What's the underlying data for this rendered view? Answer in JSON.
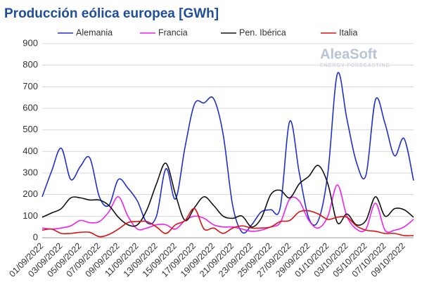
{
  "chart_data": {
    "type": "line",
    "title": "Producción eólica europea [GWh]",
    "watermark": [
      "AleaSoft",
      "ENERGY FORECASTING"
    ],
    "categories": [
      "01/09/2022",
      null,
      "03/09/2022",
      null,
      "05/09/2022",
      null,
      "07/09/2022",
      null,
      "09/09/2022",
      null,
      "11/09/2022",
      null,
      "13/09/2022",
      null,
      "15/09/2022",
      null,
      "17/09/2022",
      null,
      "19/09/2022",
      null,
      "21/09/2022",
      null,
      "23/09/2022",
      null,
      "25/09/2022",
      null,
      "27/09/2022",
      null,
      "29/09/2022",
      null,
      "01/10/2022",
      null,
      "03/10/2022",
      null,
      "05/10/2022",
      null,
      "07/10/2022",
      null,
      "09/10/2022",
      null
    ],
    "series": [
      {
        "name": "Alemania",
        "color": "#1f2fd0",
        "values": [
          190,
          310,
          415,
          270,
          330,
          370,
          190,
          150,
          270,
          230,
          170,
          70,
          100,
          320,
          180,
          420,
          620,
          625,
          645,
          480,
          150,
          25,
          60,
          120,
          130,
          140,
          540,
          300,
          90,
          80,
          300,
          760,
          550,
          350,
          290,
          640,
          530,
          380,
          460,
          265
        ]
      },
      {
        "name": "Francia",
        "color": "#f020f0",
        "values": [
          45,
          40,
          45,
          55,
          80,
          70,
          75,
          120,
          190,
          100,
          40,
          45,
          60,
          60,
          40,
          80,
          100,
          90,
          60,
          50,
          50,
          40,
          30,
          35,
          50,
          70,
          180,
          170,
          80,
          45,
          100,
          245,
          100,
          40,
          40,
          160,
          35,
          35,
          50,
          85
        ]
      },
      {
        "name": "Pen. Ibérica",
        "color": "#111111",
        "values": [
          95,
          115,
          135,
          185,
          185,
          175,
          175,
          150,
          95,
          60,
          60,
          130,
          250,
          345,
          200,
          80,
          140,
          190,
          150,
          100,
          90,
          100,
          50,
          90,
          200,
          220,
          185,
          250,
          285,
          335,
          250,
          70,
          110,
          60,
          80,
          190,
          100,
          135,
          130,
          95
        ]
      },
      {
        "name": "Italia",
        "color": "#e01010",
        "values": [
          35,
          40,
          20,
          20,
          25,
          25,
          5,
          15,
          40,
          70,
          75,
          75,
          50,
          20,
          60,
          80,
          135,
          40,
          45,
          20,
          45,
          55,
          45,
          45,
          50,
          75,
          80,
          120,
          125,
          110,
          85,
          95,
          95,
          55,
          35,
          30,
          20,
          20,
          10,
          10
        ]
      }
    ],
    "ylim": [
      0,
      900
    ],
    "yticks": [
      0,
      100,
      200,
      300,
      400,
      500,
      600,
      700,
      800,
      900
    ],
    "grid": true,
    "legend": "top"
  }
}
